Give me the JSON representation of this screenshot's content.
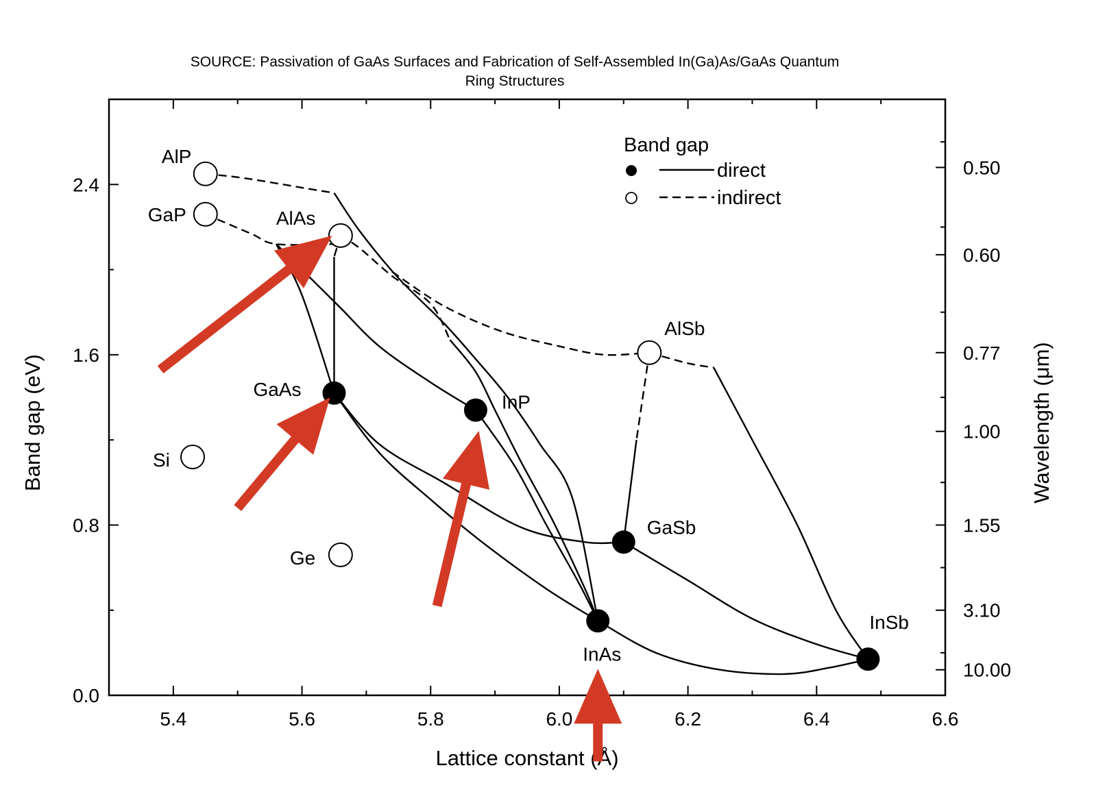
{
  "chart_data": {
    "type": "scatter",
    "title": "SOURCE: Passivation of GaAs Surfaces and Fabrication of Self-Assembled In(Ga)As/GaAs Quantum",
    "subtitle": "Ring Structures",
    "xlabel": "Lattice constant (Å)",
    "ylabel": "Band gap (eV)",
    "y2label": "Wavelength (μm)",
    "xlim": [
      5.3,
      6.6
    ],
    "ylim": [
      0.0,
      2.8
    ],
    "x_ticks": [
      "5.4",
      "5.6",
      "5.8",
      "6.0",
      "6.2",
      "6.4",
      "6.6"
    ],
    "y_ticks": [
      "0.0",
      "0.8",
      "1.6",
      "2.4"
    ],
    "y2_ticks": [
      {
        "label": "0.50",
        "energy": 2.48
      },
      {
        "label": "0.60",
        "energy": 2.07
      },
      {
        "label": "0.77",
        "energy": 1.61
      },
      {
        "label": "1.00",
        "energy": 1.24
      },
      {
        "label": "1.55",
        "energy": 0.8
      },
      {
        "label": "3.10",
        "energy": 0.4
      },
      {
        "label": "10.00",
        "energy": 0.12
      }
    ],
    "grid": false,
    "legend": {
      "title": "Band gap",
      "position": "top-right",
      "entries": [
        {
          "name": "direct",
          "marker": "filled",
          "line": "solid"
        },
        {
          "name": "indirect",
          "marker": "open",
          "line": "dashed"
        }
      ]
    },
    "points": [
      {
        "name": "AlP",
        "x": 5.45,
        "y": 2.45,
        "gap": "indirect"
      },
      {
        "name": "GaP",
        "x": 5.45,
        "y": 2.26,
        "gap": "indirect"
      },
      {
        "name": "AlAs",
        "x": 5.66,
        "y": 2.16,
        "gap": "indirect"
      },
      {
        "name": "AlSb",
        "x": 6.14,
        "y": 1.61,
        "gap": "indirect"
      },
      {
        "name": "Si",
        "x": 5.43,
        "y": 1.12,
        "gap": "indirect"
      },
      {
        "name": "Ge",
        "x": 5.66,
        "y": 0.66,
        "gap": "indirect"
      },
      {
        "name": "GaAs",
        "x": 5.65,
        "y": 1.42,
        "gap": "direct"
      },
      {
        "name": "InP",
        "x": 5.87,
        "y": 1.34,
        "gap": "direct"
      },
      {
        "name": "GaSb",
        "x": 6.1,
        "y": 0.72,
        "gap": "direct"
      },
      {
        "name": "InAs",
        "x": 6.06,
        "y": 0.35,
        "gap": "direct"
      },
      {
        "name": "InSb",
        "x": 6.48,
        "y": 0.17,
        "gap": "direct"
      }
    ],
    "curves": [
      {
        "style": "dashed",
        "points": [
          [
            5.45,
            2.45
          ],
          [
            5.51,
            2.43
          ],
          [
            5.61,
            2.38
          ],
          [
            5.65,
            2.36
          ]
        ]
      },
      {
        "style": "solid",
        "points": [
          [
            5.65,
            2.36
          ],
          [
            5.69,
            2.18
          ],
          [
            5.75,
            1.96
          ],
          [
            5.82,
            1.75
          ],
          [
            5.87,
            1.58
          ],
          [
            5.92,
            1.4
          ],
          [
            5.97,
            1.18
          ],
          [
            6.02,
            0.93
          ],
          [
            6.06,
            0.35
          ]
        ]
      },
      {
        "style": "dashed",
        "points": [
          [
            5.45,
            2.26
          ],
          [
            5.52,
            2.17
          ],
          [
            5.56,
            2.12
          ],
          [
            5.65,
            2.12
          ]
        ]
      },
      {
        "style": "solid",
        "points": [
          [
            5.56,
            2.12
          ],
          [
            5.6,
            1.88
          ],
          [
            5.65,
            1.42
          ]
        ]
      },
      {
        "style": "solid",
        "points": [
          [
            5.56,
            2.12
          ],
          [
            5.61,
            1.97
          ],
          [
            5.66,
            1.82
          ],
          [
            5.72,
            1.64
          ],
          [
            5.8,
            1.47
          ],
          [
            5.87,
            1.34
          ]
        ]
      },
      {
        "style": "dashed",
        "points": [
          [
            5.66,
            2.16
          ],
          [
            5.69,
            2.1
          ],
          [
            5.74,
            1.97
          ],
          [
            5.8,
            1.84
          ],
          [
            5.83,
            1.67
          ]
        ]
      },
      {
        "style": "solid",
        "points": [
          [
            5.83,
            1.67
          ],
          [
            5.87,
            1.52
          ],
          [
            5.9,
            1.34
          ],
          [
            5.94,
            1.1
          ],
          [
            5.99,
            0.82
          ],
          [
            6.04,
            0.5
          ],
          [
            6.06,
            0.35
          ]
        ]
      },
      {
        "style": "dashed",
        "points": [
          [
            5.66,
            2.16
          ],
          [
            5.65,
            2.06
          ]
        ]
      },
      {
        "style": "solid",
        "points": [
          [
            5.65,
            2.06
          ],
          [
            5.65,
            1.42
          ]
        ]
      },
      {
        "style": "solid",
        "points": [
          [
            5.65,
            1.42
          ],
          [
            5.72,
            1.18
          ],
          [
            5.82,
            1.0
          ],
          [
            5.94,
            0.79
          ],
          [
            6.04,
            0.72
          ],
          [
            6.1,
            0.72
          ]
        ]
      },
      {
        "style": "solid",
        "points": [
          [
            5.65,
            1.42
          ],
          [
            5.72,
            1.14
          ],
          [
            5.8,
            0.92
          ],
          [
            5.88,
            0.72
          ],
          [
            5.98,
            0.5
          ],
          [
            6.06,
            0.35
          ]
        ]
      },
      {
        "style": "solid",
        "points": [
          [
            5.87,
            1.34
          ],
          [
            5.93,
            1.08
          ],
          [
            5.98,
            0.8
          ],
          [
            6.03,
            0.53
          ],
          [
            6.06,
            0.35
          ]
        ]
      },
      {
        "style": "dashed",
        "points": [
          [
            5.74,
            1.99
          ],
          [
            5.82,
            1.83
          ],
          [
            5.91,
            1.71
          ],
          [
            6.0,
            1.64
          ],
          [
            6.07,
            1.6
          ],
          [
            6.14,
            1.61
          ]
        ]
      },
      {
        "style": "dashed",
        "points": [
          [
            6.14,
            1.61
          ],
          [
            6.12,
            1.2
          ]
        ]
      },
      {
        "style": "solid",
        "points": [
          [
            6.12,
            1.2
          ],
          [
            6.1,
            0.72
          ]
        ]
      },
      {
        "style": "dashed",
        "points": [
          [
            6.14,
            1.61
          ],
          [
            6.2,
            1.56
          ],
          [
            6.24,
            1.54
          ]
        ]
      },
      {
        "style": "solid",
        "points": [
          [
            6.24,
            1.54
          ],
          [
            6.3,
            1.2
          ],
          [
            6.37,
            0.8
          ],
          [
            6.43,
            0.4
          ],
          [
            6.48,
            0.17
          ]
        ]
      },
      {
        "style": "solid",
        "points": [
          [
            6.1,
            0.72
          ],
          [
            6.2,
            0.54
          ],
          [
            6.3,
            0.36
          ],
          [
            6.4,
            0.24
          ],
          [
            6.48,
            0.17
          ]
        ]
      },
      {
        "style": "solid",
        "points": [
          [
            6.06,
            0.35
          ],
          [
            6.15,
            0.2
          ],
          [
            6.25,
            0.12
          ],
          [
            6.35,
            0.1
          ],
          [
            6.42,
            0.13
          ],
          [
            6.48,
            0.17
          ]
        ]
      }
    ],
    "annotations": [
      {
        "type": "arrow",
        "color": "#d33a25",
        "from": [
          5.38,
          1.53
        ],
        "to": [
          5.63,
          2.12
        ]
      },
      {
        "type": "arrow",
        "color": "#d33a25",
        "from": [
          5.5,
          0.88
        ],
        "to": [
          5.63,
          1.35
        ]
      },
      {
        "type": "arrow",
        "color": "#d33a25",
        "from": [
          5.81,
          0.42
        ],
        "to": [
          5.87,
          1.18
        ]
      },
      {
        "type": "arrow",
        "color": "#d33a25",
        "from": [
          6.06,
          -0.31
        ],
        "to": [
          6.06,
          0.06
        ]
      }
    ]
  }
}
